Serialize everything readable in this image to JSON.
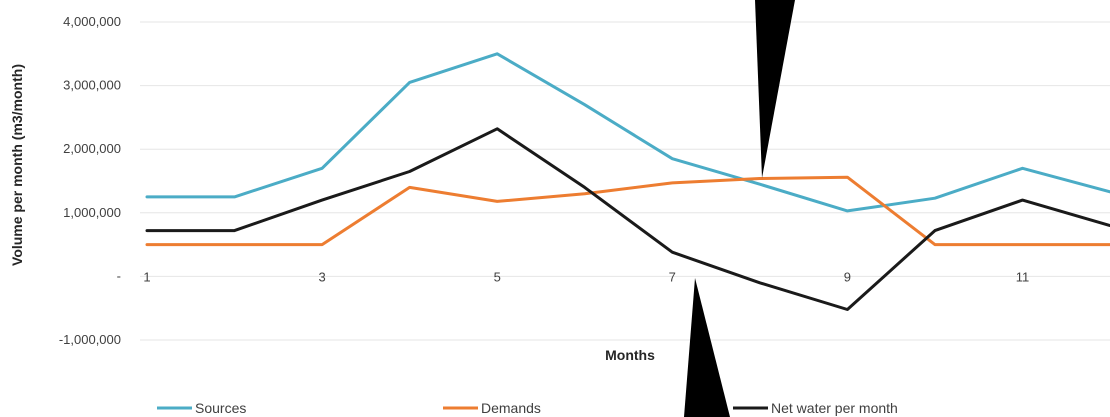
{
  "chart_data": {
    "type": "line",
    "title": "",
    "xlabel": "Months",
    "ylabel": "Volume per month (m3/month)",
    "x": [
      1,
      2,
      3,
      4,
      5,
      6,
      7,
      8,
      9,
      10,
      11,
      12
    ],
    "x_tick_labels": [
      "1",
      "3",
      "5",
      "7",
      "9",
      "11"
    ],
    "x_tick_values": [
      1,
      3,
      5,
      7,
      9,
      11
    ],
    "y_tick_labels": [
      "4,000,000",
      "3,000,000",
      "2,000,000",
      "1,000,000",
      "-",
      "-1,000,000"
    ],
    "y_tick_values": [
      4000000,
      3000000,
      2000000,
      1000000,
      0,
      -1000000
    ],
    "ylim": [
      -1000000,
      4000000
    ],
    "xlim": [
      1,
      12
    ],
    "grid": true,
    "legend_position": "bottom",
    "series": [
      {
        "name": "Sources",
        "color": "#4bacc6",
        "values": [
          1250000,
          1250000,
          1700000,
          3050000,
          3500000,
          2700000,
          1850000,
          1450000,
          1030000,
          1230000,
          1700000,
          1330000
        ]
      },
      {
        "name": "Demands",
        "color": "#ed7d31",
        "values": [
          500000,
          500000,
          500000,
          1400000,
          1180000,
          1300000,
          1470000,
          1540000,
          1560000,
          500000,
          500000,
          500000
        ]
      },
      {
        "name": "Net water per month",
        "color": "#1a1a1a",
        "values": [
          720000,
          720000,
          1200000,
          1650000,
          2320000,
          1400000,
          380000,
          -100000,
          -520000,
          720000,
          1200000,
          800000
        ]
      }
    ]
  }
}
